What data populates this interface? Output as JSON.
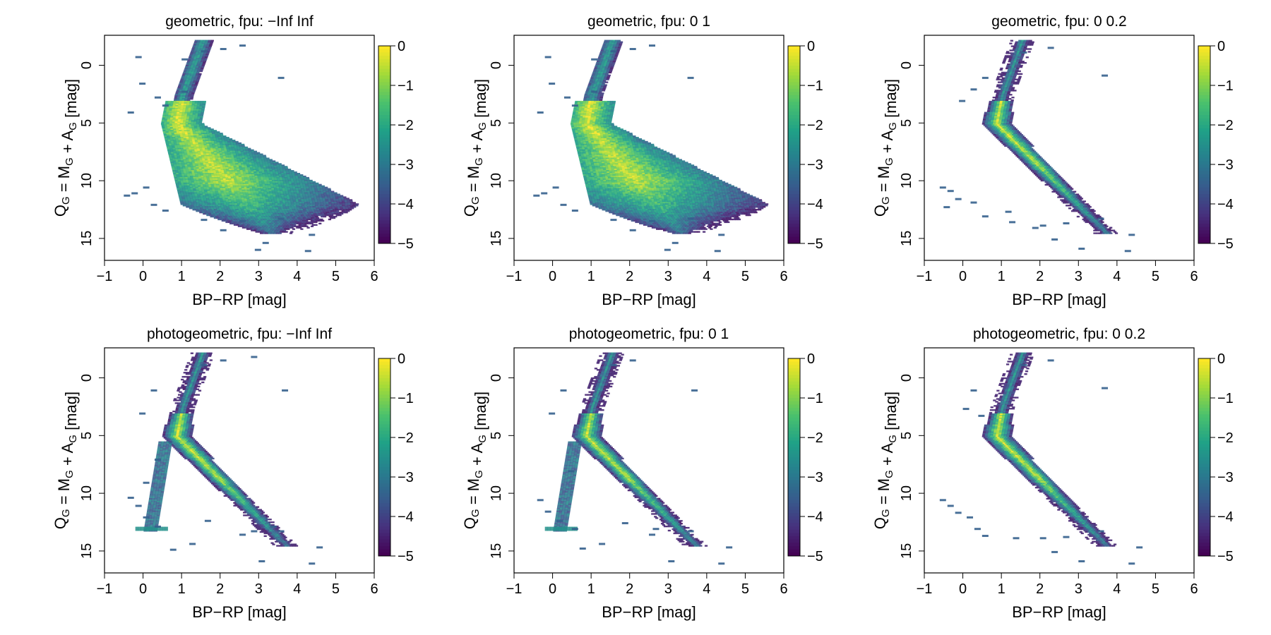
{
  "chart_data": [
    {
      "type": "heatmap",
      "title": "geometric,  fpu: −Inf Inf",
      "xlabel": "BP−RP [mag]",
      "ylabel": "Q_G = M_G + A_G [mag]",
      "xlim": [
        -1,
        6
      ],
      "ylim": [
        16.9,
        -2.6
      ],
      "xticks": [
        -1,
        0,
        1,
        2,
        3,
        4,
        5,
        6
      ],
      "xtick_labels": [
        "−1",
        "0",
        "1",
        "2",
        "3",
        "4",
        "5",
        "6"
      ],
      "yticks": [
        0,
        5,
        10,
        15
      ],
      "ytick_labels": [
        "0",
        "5",
        "10",
        "15"
      ],
      "colorbar": {
        "range": [
          -5,
          0
        ],
        "ticks": [
          0,
          -1,
          -2,
          -3,
          -4,
          -5
        ],
        "tick_labels": [
          "0",
          "−1",
          "−2",
          "−3",
          "−4",
          "−5"
        ]
      },
      "density_shape": "broad",
      "scatter_points": [
        [
          0.0,
          10.5
        ],
        [
          -0.3,
          11.0
        ],
        [
          -0.5,
          11.2
        ],
        [
          0.2,
          12.0
        ],
        [
          0.5,
          12.5
        ],
        [
          1.5,
          13.3
        ],
        [
          2.5,
          13.4
        ],
        [
          3.5,
          13.2
        ],
        [
          4.3,
          14.6
        ],
        [
          2.0,
          14.2
        ],
        [
          3.1,
          15.3
        ],
        [
          4.2,
          16.0
        ],
        [
          2.9,
          15.9
        ],
        [
          1.0,
          2.2
        ],
        [
          0.5,
          3.4
        ],
        [
          -0.1,
          1.5
        ],
        [
          3.5,
          1.0
        ],
        [
          1.5,
          -1.3
        ],
        [
          2.0,
          -1.5
        ],
        [
          1.0,
          -0.6
        ],
        [
          -0.2,
          -0.8
        ],
        [
          2.5,
          -1.8
        ],
        [
          0.3,
          2.7
        ],
        [
          -0.4,
          4.0
        ]
      ]
    },
    {
      "type": "heatmap",
      "title": "geometric,  fpu: 0 1",
      "xlabel": "BP−RP [mag]",
      "ylabel": "Q_G = M_G + A_G [mag]",
      "xlim": [
        -1,
        6
      ],
      "ylim": [
        16.9,
        -2.6
      ],
      "xticks": [
        -1,
        0,
        1,
        2,
        3,
        4,
        5,
        6
      ],
      "xtick_labels": [
        "−1",
        "0",
        "1",
        "2",
        "3",
        "4",
        "5",
        "6"
      ],
      "yticks": [
        0,
        5,
        10,
        15
      ],
      "ytick_labels": [
        "0",
        "5",
        "10",
        "15"
      ],
      "colorbar": {
        "range": [
          -5,
          0
        ],
        "ticks": [
          0,
          -1,
          -2,
          -3,
          -4,
          -5
        ],
        "tick_labels": [
          "0",
          "−1",
          "−2",
          "−3",
          "−4",
          "−5"
        ]
      },
      "density_shape": "broad",
      "scatter_points": [
        [
          0.0,
          10.5
        ],
        [
          -0.3,
          11.0
        ],
        [
          -0.5,
          11.2
        ],
        [
          0.2,
          12.0
        ],
        [
          0.5,
          12.5
        ],
        [
          1.5,
          13.3
        ],
        [
          2.5,
          13.4
        ],
        [
          3.5,
          13.2
        ],
        [
          4.3,
          14.6
        ],
        [
          2.0,
          14.2
        ],
        [
          3.1,
          15.3
        ],
        [
          4.2,
          16.0
        ],
        [
          2.9,
          15.9
        ],
        [
          1.0,
          2.2
        ],
        [
          0.5,
          3.4
        ],
        [
          -0.1,
          1.5
        ],
        [
          3.5,
          1.0
        ],
        [
          1.5,
          -1.3
        ],
        [
          2.0,
          -1.5
        ],
        [
          1.0,
          -0.6
        ],
        [
          -0.2,
          -0.8
        ],
        [
          2.5,
          -1.8
        ],
        [
          0.3,
          2.7
        ],
        [
          -0.4,
          4.0
        ]
      ]
    },
    {
      "type": "heatmap",
      "title": "geometric,  fpu: 0 0.2",
      "xlabel": "BP−RP [mag]",
      "ylabel": "Q_G = M_G + A_G [mag]",
      "xlim": [
        -1,
        6
      ],
      "ylim": [
        16.9,
        -2.6
      ],
      "xticks": [
        -1,
        0,
        1,
        2,
        3,
        4,
        5,
        6
      ],
      "xtick_labels": [
        "−1",
        "0",
        "1",
        "2",
        "3",
        "4",
        "5",
        "6"
      ],
      "yticks": [
        0,
        5,
        10,
        15
      ],
      "ytick_labels": [
        "0",
        "5",
        "10",
        "15"
      ],
      "colorbar": {
        "range": [
          -5,
          0
        ],
        "ticks": [
          0,
          -1,
          -2,
          -3,
          -4,
          -5
        ],
        "tick_labels": [
          "0",
          "−1",
          "−2",
          "−3",
          "−4",
          "−5"
        ]
      },
      "density_shape": "narrow",
      "scatter_points": [
        [
          -0.6,
          10.5
        ],
        [
          -0.4,
          10.8
        ],
        [
          -0.2,
          11.5
        ],
        [
          -0.5,
          12.2
        ],
        [
          0.2,
          11.8
        ],
        [
          0.5,
          13.0
        ],
        [
          1.2,
          13.5
        ],
        [
          2.0,
          13.8
        ],
        [
          2.6,
          13.6
        ],
        [
          3.5,
          13.2
        ],
        [
          4.3,
          14.6
        ],
        [
          2.3,
          15.0
        ],
        [
          3.0,
          15.8
        ],
        [
          4.2,
          16.0
        ],
        [
          1.5,
          -1.2
        ],
        [
          2.2,
          -1.6
        ],
        [
          3.6,
          0.8
        ],
        [
          0.5,
          1.0
        ],
        [
          0.2,
          2.0
        ],
        [
          -0.1,
          3.0
        ],
        [
          1.1,
          12.6
        ],
        [
          1.8,
          14.0
        ]
      ]
    },
    {
      "type": "heatmap",
      "title": "photogeometric,  fpu: −Inf Inf",
      "xlabel": "BP−RP [mag]",
      "ylabel": "Q_G = M_G + A_G [mag]",
      "xlim": [
        -1,
        6
      ],
      "ylim": [
        16.9,
        -2.6
      ],
      "xticks": [
        -1,
        0,
        1,
        2,
        3,
        4,
        5,
        6
      ],
      "xtick_labels": [
        "−1",
        "0",
        "1",
        "2",
        "3",
        "4",
        "5",
        "6"
      ],
      "yticks": [
        0,
        5,
        10,
        15
      ],
      "ytick_labels": [
        "0",
        "5",
        "10",
        "15"
      ],
      "colorbar": {
        "range": [
          -5,
          0
        ],
        "ticks": [
          0,
          -1,
          -2,
          -3,
          -4,
          -5
        ],
        "tick_labels": [
          "0",
          "−1",
          "−2",
          "−3",
          "−4",
          "−5"
        ]
      },
      "density_shape": "narrow",
      "white_dwarf_branch": true,
      "scatter_points": [
        [
          -0.4,
          10.3
        ],
        [
          -0.2,
          11.0
        ],
        [
          0.0,
          12.0
        ],
        [
          0.3,
          12.8
        ],
        [
          1.2,
          14.3
        ],
        [
          0.7,
          14.8
        ],
        [
          2.5,
          13.5
        ],
        [
          3.5,
          13.2
        ],
        [
          4.5,
          14.6
        ],
        [
          3.0,
          15.8
        ],
        [
          4.3,
          16.0
        ],
        [
          1.5,
          -1.2
        ],
        [
          2.0,
          -1.6
        ],
        [
          2.8,
          -1.9
        ],
        [
          3.6,
          1.0
        ],
        [
          0.2,
          1.0
        ],
        [
          -0.1,
          3.0
        ],
        [
          0.3,
          7.0
        ],
        [
          0.0,
          9.0
        ],
        [
          1.6,
          12.3
        ],
        [
          2.8,
          13.2
        ],
        [
          3.3,
          12.8
        ]
      ]
    },
    {
      "type": "heatmap",
      "title": "photogeometric,  fpu: 0 1",
      "xlabel": "BP−RP [mag]",
      "ylabel": "Q_G = M_G + A_G [mag]",
      "xlim": [
        -1,
        6
      ],
      "ylim": [
        16.9,
        -2.6
      ],
      "xticks": [
        -1,
        0,
        1,
        2,
        3,
        4,
        5,
        6
      ],
      "xtick_labels": [
        "−1",
        "0",
        "1",
        "2",
        "3",
        "4",
        "5",
        "6"
      ],
      "yticks": [
        0,
        5,
        10,
        15
      ],
      "ytick_labels": [
        "0",
        "5",
        "10",
        "15"
      ],
      "colorbar": {
        "range": [
          -5,
          0
        ],
        "ticks": [
          0,
          -1,
          -2,
          -3,
          -4,
          -5
        ],
        "tick_labels": [
          "0",
          "−1",
          "−2",
          "−3",
          "−4",
          "−5"
        ]
      },
      "density_shape": "narrow",
      "white_dwarf_branch": true,
      "scatter_points": [
        [
          -0.4,
          10.5
        ],
        [
          -0.2,
          11.5
        ],
        [
          0.1,
          12.3
        ],
        [
          0.5,
          13.0
        ],
        [
          1.2,
          14.3
        ],
        [
          0.7,
          14.7
        ],
        [
          2.5,
          13.5
        ],
        [
          3.5,
          13.2
        ],
        [
          4.5,
          14.6
        ],
        [
          3.0,
          15.8
        ],
        [
          4.3,
          16.0
        ],
        [
          1.5,
          -1.2
        ],
        [
          2.0,
          -1.6
        ],
        [
          3.6,
          1.0
        ],
        [
          0.2,
          1.0
        ],
        [
          -0.1,
          3.0
        ],
        [
          0.4,
          8.0
        ],
        [
          1.8,
          12.5
        ],
        [
          2.6,
          13.0
        ]
      ]
    },
    {
      "type": "heatmap",
      "title": "photogeometric,  fpu: 0 0.2",
      "xlabel": "BP−RP [mag]",
      "ylabel": "Q_G = M_G + A_G [mag]",
      "xlim": [
        -1,
        6
      ],
      "ylim": [
        16.9,
        -2.6
      ],
      "xticks": [
        -1,
        0,
        1,
        2,
        3,
        4,
        5,
        6
      ],
      "xtick_labels": [
        "−1",
        "0",
        "1",
        "2",
        "3",
        "4",
        "5",
        "6"
      ],
      "yticks": [
        0,
        5,
        10,
        15
      ],
      "ytick_labels": [
        "0",
        "5",
        "10",
        "15"
      ],
      "colorbar": {
        "range": [
          -5,
          0
        ],
        "ticks": [
          0,
          -1,
          -2,
          -3,
          -4,
          -5
        ],
        "tick_labels": [
          "0",
          "−1",
          "−2",
          "−3",
          "−4",
          "−5"
        ]
      },
      "density_shape": "narrow",
      "scatter_points": [
        [
          -0.6,
          10.5
        ],
        [
          -0.4,
          11.0
        ],
        [
          -0.2,
          11.6
        ],
        [
          0.1,
          12.0
        ],
        [
          0.3,
          13.0
        ],
        [
          0.5,
          13.6
        ],
        [
          1.3,
          13.8
        ],
        [
          2.0,
          13.8
        ],
        [
          2.6,
          13.7
        ],
        [
          3.5,
          13.2
        ],
        [
          4.5,
          14.6
        ],
        [
          2.3,
          15.0
        ],
        [
          3.0,
          15.8
        ],
        [
          4.3,
          16.0
        ],
        [
          1.5,
          -1.2
        ],
        [
          2.2,
          -1.6
        ],
        [
          3.6,
          0.8
        ],
        [
          0.2,
          1.0
        ],
        [
          0.0,
          2.6
        ],
        [
          0.4,
          3.2
        ]
      ]
    }
  ],
  "palette": [
    "#440154",
    "#46327e",
    "#365c8d",
    "#277f8e",
    "#1fa187",
    "#4ac16d",
    "#a0da39",
    "#fde725"
  ]
}
